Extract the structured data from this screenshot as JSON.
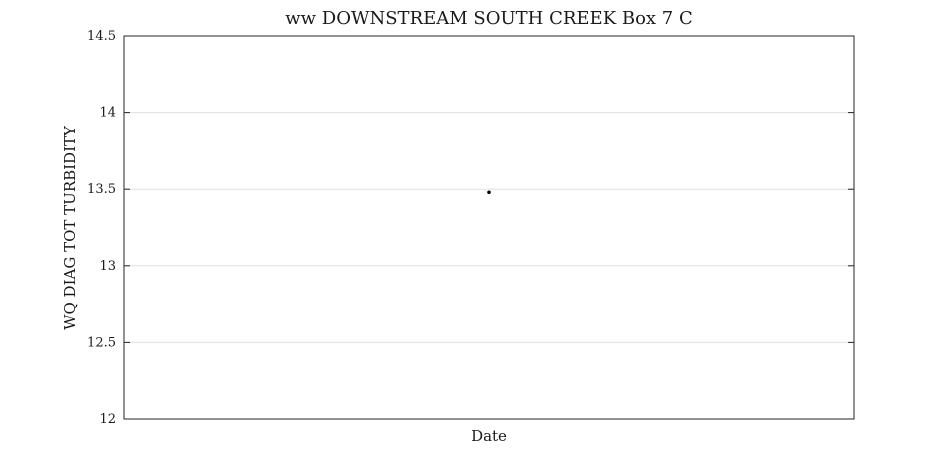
{
  "chart_data": {
    "type": "scatter",
    "title": "ww DOWNSTREAM SOUTH CREEK Box 7 C",
    "xlabel": "Date",
    "ylabel": "WQ DIAG TOT TURBIDITY",
    "ylim": [
      12,
      14.5
    ],
    "yticks": [
      12,
      12.5,
      13,
      13.5,
      14,
      14.5
    ],
    "ytick_labels": [
      "12",
      "12.5",
      "13",
      "13.5",
      "14",
      "14.5"
    ],
    "xlim": [
      0,
      1
    ],
    "grid": true,
    "grid_axis": "y",
    "legend": "none",
    "colors": {
      "marker": "#000000",
      "grid": "#e0e0e0",
      "axes": "#262626"
    },
    "points": [
      {
        "x": 0.5,
        "y": 13.48
      }
    ]
  }
}
